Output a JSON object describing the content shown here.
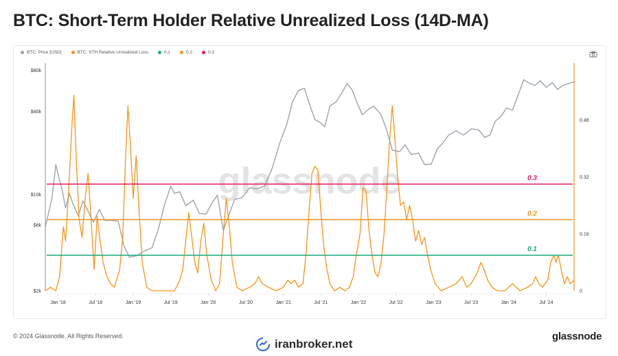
{
  "title": "BTC: Short-Term Holder Relative Unrealized Loss (14D-MA)",
  "footer": {
    "copyright": "© 2024 Glassnode. All Rights Reserved.",
    "brand": "glassnode"
  },
  "watermark": "iranbroker.net",
  "chart_data": {
    "type": "line",
    "title": "BTC: Short-Term Holder Relative Unrealized Loss (14D-MA)",
    "legend": [
      {
        "name": "BTC: Price [USD]",
        "color": "#9aa3ab"
      },
      {
        "name": "BTC: STH Relative Unrealized Loss",
        "color": "#f7931a"
      },
      {
        "name": "0.1",
        "color": "#1aa77a"
      },
      {
        "name": "0.2",
        "color": "#f7931a"
      },
      {
        "name": "0.3",
        "color": "#e8185c"
      }
    ],
    "chart_watermark": "glassnode",
    "x_ticks": [
      "Jan '18",
      "Jul '18",
      "Jan '19",
      "Jul '19",
      "Jan '20",
      "Jul '20",
      "Jan '21",
      "Jul '21",
      "Jan '22",
      "Jul '22",
      "Jan '23",
      "Jul '23",
      "Jan '24",
      "Jul '24"
    ],
    "x_range": [
      2017.83,
      2024.87
    ],
    "y_left": {
      "scale": "log",
      "ticks": [
        "$2k",
        "$6k",
        "$10k",
        "$40k",
        "$80k"
      ],
      "tick_values": [
        2000,
        6000,
        10000,
        40000,
        80000
      ],
      "range": [
        2000,
        90000
      ]
    },
    "y_right": {
      "scale": "linear",
      "ticks": [
        "0",
        "0.16",
        "0.32",
        "0.48"
      ],
      "tick_values": [
        0,
        0.16,
        0.32,
        0.48
      ],
      "range": [
        0,
        0.64
      ]
    },
    "thresholds": [
      {
        "label": "0.3",
        "value": 0.3,
        "color": "#e8185c"
      },
      {
        "label": "0.2",
        "value": 0.2,
        "color": "#f7931a"
      },
      {
        "label": "0.1",
        "value": 0.1,
        "color": "#1aa77a"
      }
    ],
    "series": [
      {
        "name": "BTC: Price [USD]",
        "axis": "left",
        "color": "#9aa3ab",
        "points": [
          [
            2017.83,
            5800
          ],
          [
            2017.92,
            9500
          ],
          [
            2017.97,
            16500
          ],
          [
            2018.0,
            14000
          ],
          [
            2018.05,
            11000
          ],
          [
            2018.1,
            8000
          ],
          [
            2018.15,
            10200
          ],
          [
            2018.2,
            8500
          ],
          [
            2018.27,
            7000
          ],
          [
            2018.33,
            9000
          ],
          [
            2018.4,
            7600
          ],
          [
            2018.47,
            6300
          ],
          [
            2018.55,
            7800
          ],
          [
            2018.62,
            6500
          ],
          [
            2018.7,
            6500
          ],
          [
            2018.8,
            6400
          ],
          [
            2018.88,
            4200
          ],
          [
            2018.95,
            3500
          ],
          [
            2019.05,
            3600
          ],
          [
            2019.15,
            3900
          ],
          [
            2019.25,
            4100
          ],
          [
            2019.33,
            5500
          ],
          [
            2019.42,
            8500
          ],
          [
            2019.5,
            11500
          ],
          [
            2019.55,
            10200
          ],
          [
            2019.62,
            10500
          ],
          [
            2019.7,
            8300
          ],
          [
            2019.8,
            9100
          ],
          [
            2019.88,
            7300
          ],
          [
            2019.97,
            7200
          ],
          [
            2020.05,
            8700
          ],
          [
            2020.12,
            9900
          ],
          [
            2020.2,
            5500
          ],
          [
            2020.27,
            7000
          ],
          [
            2020.35,
            9200
          ],
          [
            2020.45,
            9500
          ],
          [
            2020.55,
            11200
          ],
          [
            2020.65,
            11000
          ],
          [
            2020.75,
            11500
          ],
          [
            2020.85,
            15500
          ],
          [
            2020.95,
            23500
          ],
          [
            2021.05,
            33000
          ],
          [
            2021.12,
            47000
          ],
          [
            2021.2,
            57000
          ],
          [
            2021.28,
            59000
          ],
          [
            2021.35,
            45000
          ],
          [
            2021.42,
            35000
          ],
          [
            2021.5,
            33000
          ],
          [
            2021.55,
            31000
          ],
          [
            2021.62,
            44000
          ],
          [
            2021.7,
            47000
          ],
          [
            2021.78,
            55000
          ],
          [
            2021.85,
            64000
          ],
          [
            2021.92,
            57000
          ],
          [
            2021.97,
            48000
          ],
          [
            2022.05,
            38000
          ],
          [
            2022.12,
            41000
          ],
          [
            2022.2,
            44000
          ],
          [
            2022.3,
            38000
          ],
          [
            2022.37,
            30000
          ],
          [
            2022.45,
            21000
          ],
          [
            2022.55,
            20500
          ],
          [
            2022.62,
            23000
          ],
          [
            2022.7,
            19500
          ],
          [
            2022.8,
            20000
          ],
          [
            2022.88,
            16500
          ],
          [
            2022.97,
            16700
          ],
          [
            2023.05,
            21500
          ],
          [
            2023.12,
            23500
          ],
          [
            2023.2,
            27000
          ],
          [
            2023.3,
            29000
          ],
          [
            2023.4,
            27000
          ],
          [
            2023.5,
            30000
          ],
          [
            2023.6,
            29500
          ],
          [
            2023.68,
            26000
          ],
          [
            2023.75,
            27000
          ],
          [
            2023.82,
            34000
          ],
          [
            2023.9,
            37000
          ],
          [
            2023.97,
            42500
          ],
          [
            2024.05,
            41000
          ],
          [
            2024.12,
            52000
          ],
          [
            2024.2,
            68000
          ],
          [
            2024.28,
            64000
          ],
          [
            2024.35,
            62000
          ],
          [
            2024.42,
            67000
          ],
          [
            2024.5,
            60000
          ],
          [
            2024.58,
            65000
          ],
          [
            2024.65,
            58000
          ],
          [
            2024.72,
            62000
          ],
          [
            2024.8,
            64000
          ],
          [
            2024.87,
            66000
          ]
        ]
      },
      {
        "name": "BTC: STH Relative Unrealized Loss",
        "axis": "right",
        "color": "#f7931a",
        "points": [
          [
            2017.83,
            0.0
          ],
          [
            2017.9,
            0.01
          ],
          [
            2017.97,
            0.0
          ],
          [
            2018.02,
            0.04
          ],
          [
            2018.07,
            0.18
          ],
          [
            2018.1,
            0.14
          ],
          [
            2018.14,
            0.28
          ],
          [
            2018.18,
            0.45
          ],
          [
            2018.21,
            0.55
          ],
          [
            2018.24,
            0.38
          ],
          [
            2018.28,
            0.2
          ],
          [
            2018.32,
            0.15
          ],
          [
            2018.36,
            0.26
          ],
          [
            2018.4,
            0.33
          ],
          [
            2018.44,
            0.2
          ],
          [
            2018.48,
            0.06
          ],
          [
            2018.52,
            0.21
          ],
          [
            2018.56,
            0.14
          ],
          [
            2018.6,
            0.08
          ],
          [
            2018.65,
            0.04
          ],
          [
            2018.7,
            0.02
          ],
          [
            2018.75,
            0.01
          ],
          [
            2018.82,
            0.06
          ],
          [
            2018.86,
            0.15
          ],
          [
            2018.9,
            0.38
          ],
          [
            2018.93,
            0.52
          ],
          [
            2018.96,
            0.42
          ],
          [
            2019.0,
            0.26
          ],
          [
            2019.04,
            0.38
          ],
          [
            2019.08,
            0.22
          ],
          [
            2019.12,
            0.08
          ],
          [
            2019.18,
            0.01
          ],
          [
            2019.25,
            0.0
          ],
          [
            2019.35,
            0.0
          ],
          [
            2019.45,
            0.0
          ],
          [
            2019.55,
            0.0
          ],
          [
            2019.62,
            0.03
          ],
          [
            2019.66,
            0.06
          ],
          [
            2019.7,
            0.14
          ],
          [
            2019.74,
            0.22
          ],
          [
            2019.78,
            0.15
          ],
          [
            2019.82,
            0.08
          ],
          [
            2019.86,
            0.05
          ],
          [
            2019.9,
            0.14
          ],
          [
            2019.94,
            0.19
          ],
          [
            2019.98,
            0.1
          ],
          [
            2020.04,
            0.03
          ],
          [
            2020.1,
            0.0
          ],
          [
            2020.15,
            0.02
          ],
          [
            2020.2,
            0.16
          ],
          [
            2020.24,
            0.26
          ],
          [
            2020.28,
            0.18
          ],
          [
            2020.32,
            0.08
          ],
          [
            2020.38,
            0.01
          ],
          [
            2020.45,
            0.0
          ],
          [
            2020.55,
            0.01
          ],
          [
            2020.62,
            0.02
          ],
          [
            2020.67,
            0.04
          ],
          [
            2020.72,
            0.02
          ],
          [
            2020.8,
            0.01
          ],
          [
            2020.9,
            0.0
          ],
          [
            2021.0,
            0.01
          ],
          [
            2021.06,
            0.03
          ],
          [
            2021.1,
            0.02
          ],
          [
            2021.15,
            0.03
          ],
          [
            2021.2,
            0.01
          ],
          [
            2021.26,
            0.02
          ],
          [
            2021.3,
            0.1
          ],
          [
            2021.34,
            0.22
          ],
          [
            2021.38,
            0.33
          ],
          [
            2021.42,
            0.35
          ],
          [
            2021.46,
            0.34
          ],
          [
            2021.5,
            0.22
          ],
          [
            2021.54,
            0.12
          ],
          [
            2021.58,
            0.06
          ],
          [
            2021.62,
            0.02
          ],
          [
            2021.68,
            0.0
          ],
          [
            2021.75,
            0.01
          ],
          [
            2021.82,
            0.0
          ],
          [
            2021.88,
            0.01
          ],
          [
            2021.93,
            0.04
          ],
          [
            2021.97,
            0.1
          ],
          [
            2022.02,
            0.16
          ],
          [
            2022.06,
            0.29
          ],
          [
            2022.1,
            0.28
          ],
          [
            2022.14,
            0.17
          ],
          [
            2022.18,
            0.1
          ],
          [
            2022.22,
            0.05
          ],
          [
            2022.26,
            0.04
          ],
          [
            2022.3,
            0.08
          ],
          [
            2022.34,
            0.16
          ],
          [
            2022.38,
            0.3
          ],
          [
            2022.42,
            0.44
          ],
          [
            2022.45,
            0.52
          ],
          [
            2022.48,
            0.44
          ],
          [
            2022.52,
            0.32
          ],
          [
            2022.56,
            0.24
          ],
          [
            2022.6,
            0.25
          ],
          [
            2022.64,
            0.2
          ],
          [
            2022.68,
            0.24
          ],
          [
            2022.72,
            0.2
          ],
          [
            2022.76,
            0.14
          ],
          [
            2022.8,
            0.17
          ],
          [
            2022.84,
            0.13
          ],
          [
            2022.88,
            0.15
          ],
          [
            2022.92,
            0.1
          ],
          [
            2022.96,
            0.06
          ],
          [
            2023.02,
            0.02
          ],
          [
            2023.1,
            0.0
          ],
          [
            2023.2,
            0.01
          ],
          [
            2023.3,
            0.02
          ],
          [
            2023.38,
            0.04
          ],
          [
            2023.44,
            0.01
          ],
          [
            2023.5,
            0.02
          ],
          [
            2023.58,
            0.05
          ],
          [
            2023.63,
            0.08
          ],
          [
            2023.67,
            0.06
          ],
          [
            2023.72,
            0.03
          ],
          [
            2023.78,
            0.01
          ],
          [
            2023.85,
            0.0
          ],
          [
            2023.95,
            0.0
          ],
          [
            2024.05,
            0.02
          ],
          [
            2024.1,
            0.01
          ],
          [
            2024.15,
            0.0
          ],
          [
            2024.25,
            0.01
          ],
          [
            2024.32,
            0.02
          ],
          [
            2024.36,
            0.04
          ],
          [
            2024.4,
            0.02
          ],
          [
            2024.45,
            0.01
          ],
          [
            2024.52,
            0.03
          ],
          [
            2024.56,
            0.08
          ],
          [
            2024.6,
            0.1
          ],
          [
            2024.63,
            0.08
          ],
          [
            2024.66,
            0.1
          ],
          [
            2024.7,
            0.06
          ],
          [
            2024.74,
            0.02
          ],
          [
            2024.78,
            0.04
          ],
          [
            2024.82,
            0.02
          ],
          [
            2024.87,
            0.03
          ]
        ]
      }
    ]
  }
}
